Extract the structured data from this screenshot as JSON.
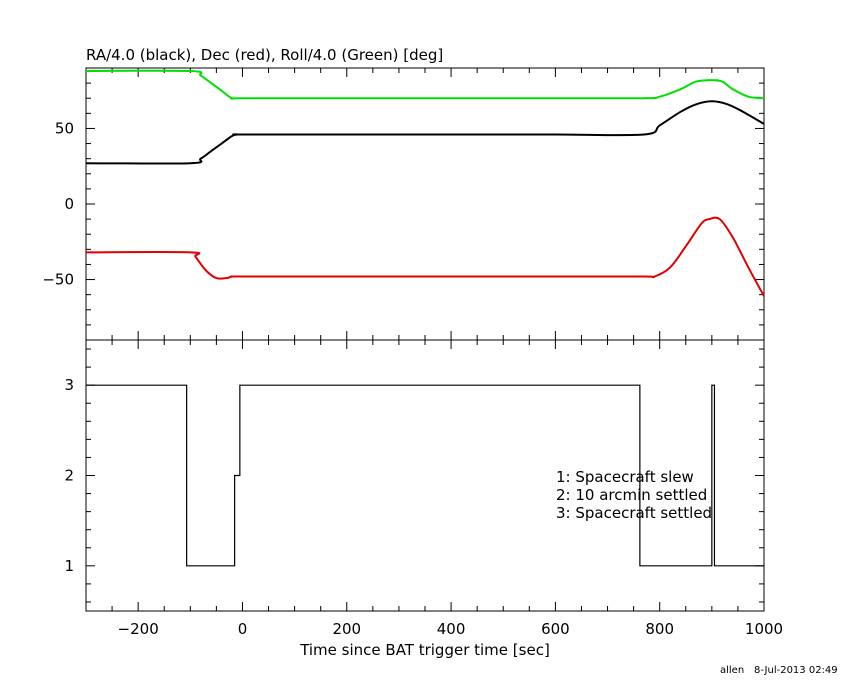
{
  "colors": {
    "ra": "#000000",
    "dec": "#e00000",
    "roll": "#00e000",
    "axis": "#000000"
  },
  "footer": {
    "user": "allen",
    "stamp": "8-Jul-2013 02:49"
  },
  "chart_data": [
    {
      "type": "line",
      "title": "RA/4.0 (black), Dec (red), Roll/4.0 (Green) [deg]",
      "xlim": [
        -300,
        1000
      ],
      "ylim": [
        -90,
        90
      ],
      "yticks": [
        -50,
        0,
        50
      ],
      "ytick_labels": [
        "−50",
        "0",
        "50"
      ],
      "grid": false,
      "series": [
        {
          "name": "RA/4.0",
          "color": "#000000",
          "x": [
            -300,
            -100,
            -80,
            -60,
            -40,
            -20,
            -10,
            0,
            200,
            400,
            600,
            770,
            800,
            840,
            870,
            900,
            930,
            960,
            1000
          ],
          "y": [
            27,
            27,
            30,
            35,
            40,
            45,
            46,
            46,
            46,
            46,
            46,
            46,
            52,
            61,
            66,
            68,
            66,
            61,
            53
          ]
        },
        {
          "name": "Dec",
          "color": "#e00000",
          "x": [
            -300,
            -100,
            -90,
            -70,
            -50,
            -30,
            -20,
            0,
            200,
            400,
            600,
            770,
            790,
            820,
            850,
            880,
            895,
            915,
            940,
            970,
            1000
          ],
          "y": [
            -32,
            -32,
            -35,
            -44,
            -49,
            -49,
            -48,
            -48,
            -48,
            -48,
            -48,
            -48,
            -48,
            -42,
            -28,
            -13,
            -10,
            -10,
            -22,
            -42,
            -61
          ]
        },
        {
          "name": "Roll/4.0",
          "color": "#00e000",
          "x": [
            -300,
            -100,
            -80,
            -60,
            -40,
            -20,
            0,
            200,
            400,
            600,
            770,
            800,
            840,
            870,
            900,
            920,
            940,
            970,
            1000
          ],
          "y": [
            88,
            88,
            85,
            80,
            75,
            70,
            70,
            70,
            70,
            70,
            70,
            71,
            76,
            81,
            82,
            81,
            76,
            71,
            70
          ]
        }
      ]
    },
    {
      "type": "line",
      "xlabel": "Time since BAT trigger time [sec]",
      "xlim": [
        -300,
        1000
      ],
      "ylim": [
        0.5,
        3.5
      ],
      "xticks": [
        -200,
        0,
        200,
        400,
        600,
        800,
        1000
      ],
      "xtick_labels": [
        "−200",
        "0",
        "200",
        "400",
        "600",
        "800",
        "1000"
      ],
      "yticks": [
        1,
        2,
        3
      ],
      "ytick_labels": [
        "1",
        "2",
        "3"
      ],
      "grid": false,
      "annotations": [
        "1: Spacecraft slew",
        "2: 10 arcmin settled",
        "3: Spacecraft settled"
      ],
      "series": [
        {
          "color": "#000000",
          "step": true,
          "x": [
            -300,
            -107,
            -107,
            -15,
            -15,
            -5,
            -5,
            762,
            762,
            892,
            892,
            900,
            900,
            905,
            905,
            1000
          ],
          "y": [
            3,
            3,
            1,
            1,
            2,
            2,
            3,
            3,
            1,
            1,
            1,
            1,
            3,
            3,
            1,
            1
          ]
        }
      ]
    }
  ]
}
